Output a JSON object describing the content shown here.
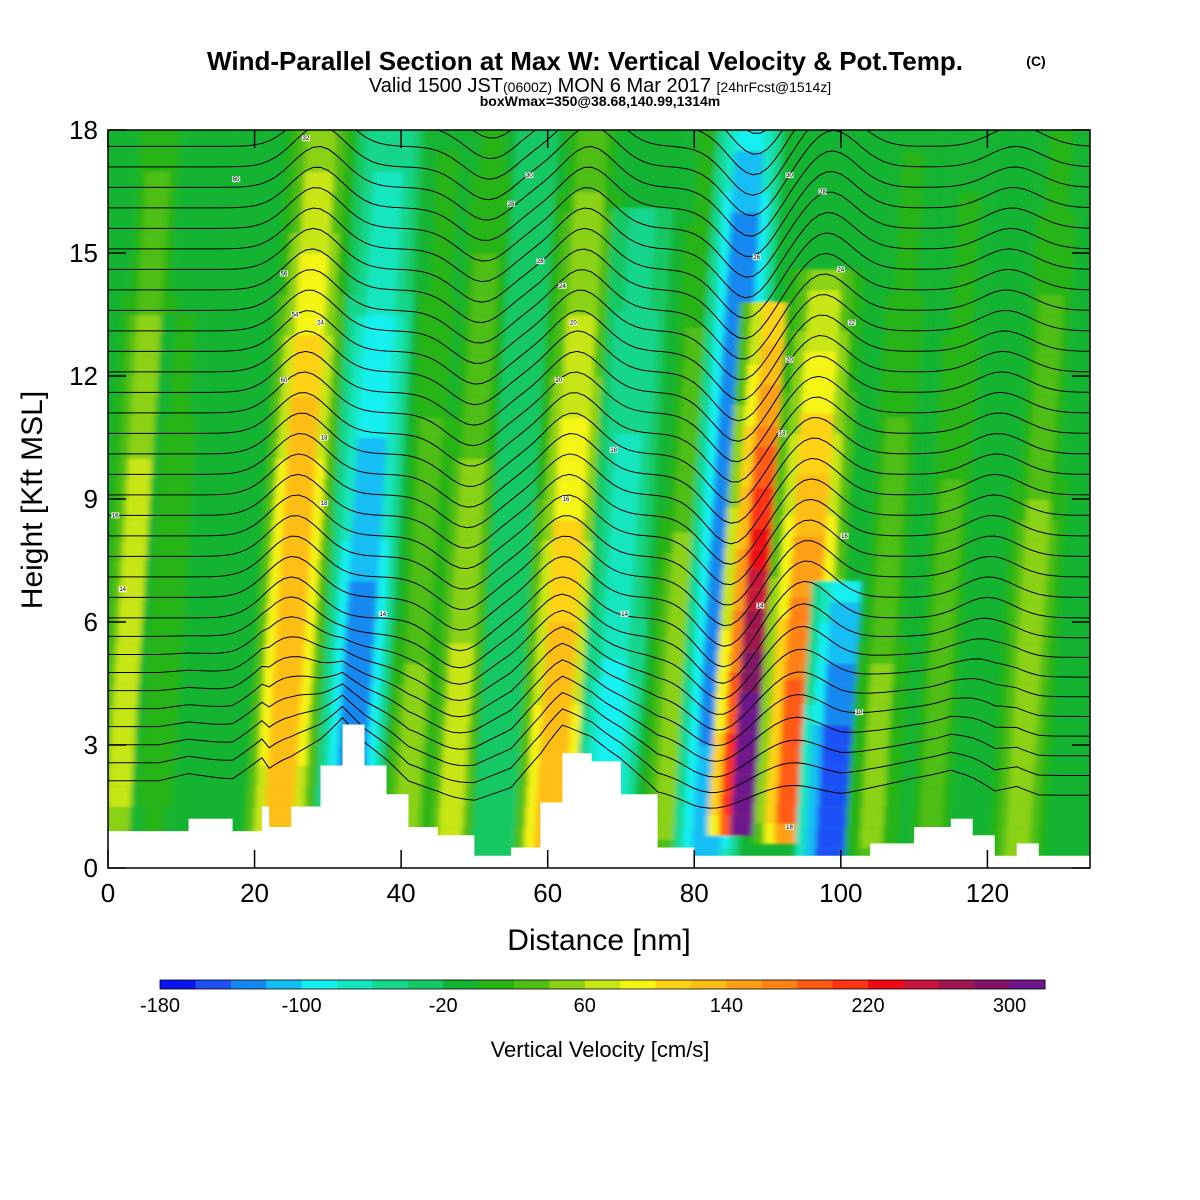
{
  "header": {
    "title": "Wind-Parallel Section at Max W: Vertical Velocity & Pot.Temp.",
    "title_mark": "(C)",
    "valid_prefix": "Valid 1500 JST",
    "valid_utc": "(0600Z)",
    "valid_date": "MON 6 Mar 2017",
    "forecast": "[24hrFcst@1514z]",
    "box_info": "boxWmax=350@38.68,140.99,1314m"
  },
  "chart_data": {
    "type": "heatmap",
    "xlabel": "Distance [nm]",
    "ylabel": "Height [Kft MSL]",
    "xlim": [
      0,
      134
    ],
    "ylim": [
      0,
      18
    ],
    "x_ticks": [
      0,
      20,
      40,
      60,
      80,
      100,
      120
    ],
    "x_tick_labels": [
      "0",
      "20",
      "40",
      "60",
      "80",
      "100",
      "120"
    ],
    "y_ticks": [
      0,
      3,
      6,
      9,
      12,
      15,
      18
    ],
    "y_tick_labels": [
      "0",
      "3",
      "6",
      "9",
      "12",
      "15",
      "18"
    ],
    "colorbar": {
      "label": "Vertical Velocity [cm/s]",
      "min": -180,
      "max": 320,
      "step": 20,
      "tick_values": [
        -180,
        -100,
        -20,
        60,
        140,
        220,
        300
      ],
      "tick_labels": [
        "-180",
        "-100",
        "-20",
        "60",
        "140",
        "220",
        "300"
      ],
      "colors": [
        "#0a14f0",
        "#1e50f5",
        "#1488f0",
        "#14bef5",
        "#14f0f0",
        "#14e6c0",
        "#14d68c",
        "#14c864",
        "#14b432",
        "#28b414",
        "#50be14",
        "#8cd214",
        "#c8e614",
        "#f5f514",
        "#ffd214",
        "#ffbe14",
        "#ffa014",
        "#ff8214",
        "#ff5a14",
        "#ff3214",
        "#f00a14",
        "#c8143c",
        "#a01450",
        "#821468",
        "#6e148c"
      ]
    },
    "vertical_velocity_bands": [
      {
        "x": 3,
        "w": 62,
        "peak_kft": 0,
        "base_kft": 9.9,
        "top_kft": 18
      },
      {
        "x": 8,
        "w": 12,
        "peak_kft": 0,
        "base_kft": 10.5,
        "top_kft": 13.5
      },
      {
        "x": 25,
        "w": 134,
        "peak_kft": 1,
        "base_kft": 10.2,
        "top_kft": 18
      },
      {
        "x": 34.5,
        "w": -132,
        "peak_kft": 1,
        "base_kft": 4.8,
        "top_kft": 18
      },
      {
        "x": 42.5,
        "w": 42,
        "peak_kft": 1,
        "base_kft": 4.2,
        "top_kft": 18
      },
      {
        "x": 48.5,
        "w": 66,
        "peak_kft": 0.9,
        "base_kft": 4.2,
        "top_kft": 18
      },
      {
        "x": 55,
        "w": -32,
        "peak_kft": 0.9,
        "base_kft": 6.0,
        "top_kft": 18
      },
      {
        "x": 62,
        "w": 138,
        "peak_kft": 1,
        "base_kft": 3.6,
        "top_kft": 18
      },
      {
        "x": 69.5,
        "w": -90,
        "peak_kft": 1.1,
        "base_kft": 2.4,
        "top_kft": 16
      },
      {
        "x": 78,
        "w": 48,
        "peak_kft": 1.2,
        "base_kft": 6.0,
        "top_kft": 18
      },
      {
        "x": 83.5,
        "w": -126,
        "peak_kft": 0,
        "base_kft": 15.6,
        "top_kft": 18
      },
      {
        "x": 89,
        "w": 330,
        "peak_kft": 1.8,
        "base_kft": 3.0,
        "top_kft": 13.5
      },
      {
        "x": 95,
        "w": 180,
        "peak_kft": 1.6,
        "base_kft": 4.8,
        "top_kft": 14.4
      },
      {
        "x": 100.5,
        "w": -150,
        "peak_kft": 0.2,
        "base_kft": 3.0,
        "top_kft": 6.6
      },
      {
        "x": 106,
        "w": 40,
        "peak_kft": 0.8,
        "base_kft": 4.8,
        "top_kft": 18
      },
      {
        "x": 114,
        "w": 36,
        "peak_kft": 0.9,
        "base_kft": 3.6,
        "top_kft": 18
      },
      {
        "x": 126,
        "w": 58,
        "peak_kft": 0.8,
        "base_kft": 4.2,
        "top_kft": 18
      }
    ],
    "terrain": {
      "x": [
        0,
        7,
        11,
        17,
        21,
        22,
        25,
        29,
        32,
        35,
        38,
        41,
        45,
        50,
        55,
        59,
        62,
        66,
        70,
        75,
        80,
        85,
        90,
        95,
        100,
        104,
        110,
        115,
        118,
        121,
        124,
        127,
        131,
        134
      ],
      "height_kft": [
        0.9,
        0.9,
        1.2,
        0.9,
        1.5,
        1.0,
        1.5,
        2.5,
        3.5,
        2.5,
        1.8,
        1.0,
        0.8,
        0.3,
        0.5,
        1.6,
        2.8,
        2.6,
        1.8,
        0.5,
        0.3,
        0.3,
        0.3,
        0.3,
        0.3,
        0.6,
        1.0,
        1.2,
        0.8,
        0.3,
        0.6,
        0.3,
        0.3,
        0.3
      ]
    },
    "isentrope_labels": [
      {
        "x": 27,
        "z": 17.8,
        "text": "32"
      },
      {
        "x": 17.5,
        "z": 16.8,
        "text": "60"
      },
      {
        "x": 24,
        "z": 14.5,
        "text": "56"
      },
      {
        "x": 25.5,
        "z": 13.5,
        "text": "54"
      },
      {
        "x": 29,
        "z": 13.3,
        "text": "24"
      },
      {
        "x": 24,
        "z": 11.9,
        "text": "60"
      },
      {
        "x": 29.5,
        "z": 10.5,
        "text": "18"
      },
      {
        "x": 29.5,
        "z": 8.9,
        "text": "18"
      },
      {
        "x": 1,
        "z": 8.6,
        "text": "16"
      },
      {
        "x": 2,
        "z": 6.8,
        "text": "14"
      },
      {
        "x": 37.5,
        "z": 6.2,
        "text": "14"
      },
      {
        "x": 57.5,
        "z": 16.9,
        "text": "30"
      },
      {
        "x": 55,
        "z": 16.2,
        "text": "28"
      },
      {
        "x": 59,
        "z": 14.8,
        "text": "26"
      },
      {
        "x": 62,
        "z": 14.2,
        "text": "24"
      },
      {
        "x": 63.5,
        "z": 13.3,
        "text": "20"
      },
      {
        "x": 61.5,
        "z": 11.9,
        "text": "20"
      },
      {
        "x": 69,
        "z": 10.2,
        "text": "18"
      },
      {
        "x": 62.5,
        "z": 9.0,
        "text": "16"
      },
      {
        "x": 70.5,
        "z": 6.2,
        "text": "14"
      },
      {
        "x": 93,
        "z": 16.9,
        "text": "30"
      },
      {
        "x": 97.5,
        "z": 16.5,
        "text": "28"
      },
      {
        "x": 88.5,
        "z": 14.9,
        "text": "26"
      },
      {
        "x": 100,
        "z": 14.6,
        "text": "24"
      },
      {
        "x": 101.5,
        "z": 13.3,
        "text": "22"
      },
      {
        "x": 93,
        "z": 12.4,
        "text": "20"
      },
      {
        "x": 92,
        "z": 10.6,
        "text": "18"
      },
      {
        "x": 100.5,
        "z": 8.1,
        "text": "16"
      },
      {
        "x": 89,
        "z": 6.4,
        "text": "14"
      },
      {
        "x": 102.5,
        "z": 3.8,
        "text": "10"
      },
      {
        "x": 93,
        "z": 1.0,
        "text": "18"
      }
    ]
  }
}
